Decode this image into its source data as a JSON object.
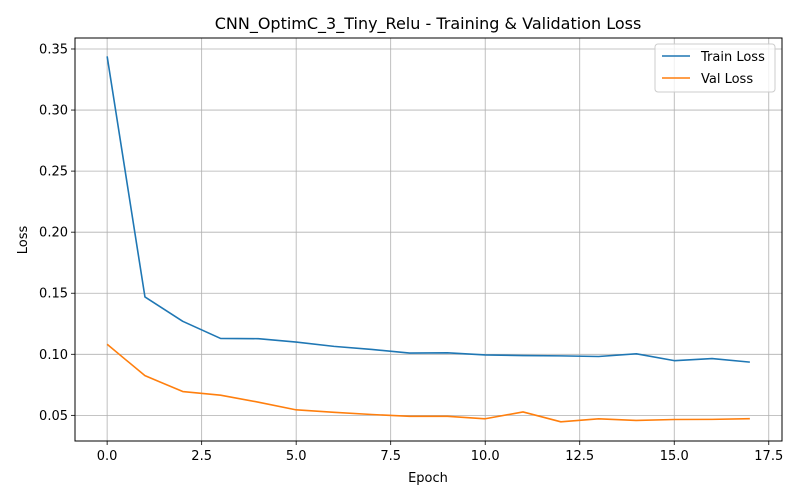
{
  "chart_data": {
    "type": "line",
    "title": "CNN_OptimC_3_Tiny_Relu - Training & Validation Loss",
    "xlabel": "Epoch",
    "ylabel": "Loss",
    "xlim": [
      -0.85,
      17.85
    ],
    "ylim": [
      0.029,
      0.359
    ],
    "xticks": [
      0.0,
      2.5,
      5.0,
      7.5,
      10.0,
      12.5,
      15.0,
      17.5
    ],
    "xtick_labels": [
      "0.0",
      "2.5",
      "5.0",
      "7.5",
      "10.0",
      "12.5",
      "15.0",
      "17.5"
    ],
    "yticks": [
      0.05,
      0.1,
      0.15,
      0.2,
      0.25,
      0.3,
      0.35
    ],
    "ytick_labels": [
      "0.05",
      "0.10",
      "0.15",
      "0.20",
      "0.25",
      "0.30",
      "0.35"
    ],
    "grid": true,
    "legend_position": "top-right",
    "x": [
      0,
      1,
      2,
      3,
      4,
      5,
      6,
      7,
      8,
      9,
      10,
      11,
      12,
      13,
      14,
      15,
      16,
      17
    ],
    "series": [
      {
        "name": "Train Loss",
        "color": "#1f77b4",
        "values": [
          0.344,
          0.147,
          0.127,
          0.113,
          0.1128,
          0.11,
          0.1065,
          0.104,
          0.101,
          0.1012,
          0.0995,
          0.099,
          0.0987,
          0.0982,
          0.1004,
          0.0948,
          0.0965,
          0.0936
        ]
      },
      {
        "name": "Val Loss",
        "color": "#ff7f0e",
        "values": [
          0.1082,
          0.0825,
          0.0695,
          0.0665,
          0.0608,
          0.0545,
          0.0525,
          0.0507,
          0.0492,
          0.0492,
          0.0472,
          0.0528,
          0.0447,
          0.0472,
          0.0458,
          0.0466,
          0.0467,
          0.0473
        ]
      }
    ]
  }
}
